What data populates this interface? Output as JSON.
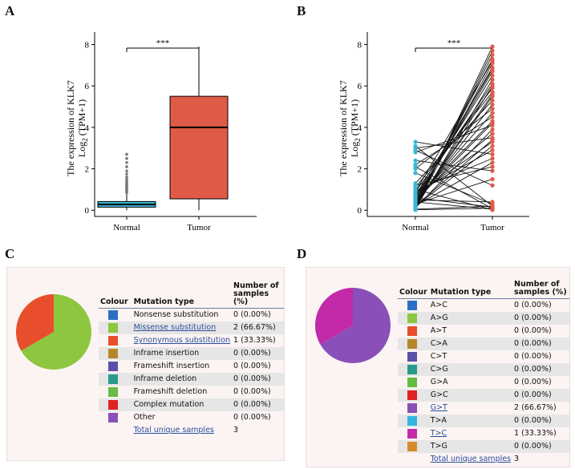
{
  "panels": {
    "A": "A",
    "B": "B",
    "C": "C",
    "D": "D"
  },
  "chart_data": [
    {
      "type": "box",
      "panel": "A",
      "ylabel_line1": "The expression  of KLK7",
      "ylabel_line2": "Log",
      "ylabel_sub": "2",
      "ylabel_tail": " (TPM+1)",
      "ylim": [
        -0.3,
        8.6
      ],
      "yticks": [
        "0",
        "2",
        "4",
        "6",
        "8"
      ],
      "categories": [
        "Normal",
        "Tumor"
      ],
      "boxes": [
        {
          "name": "Normal",
          "min": 0.0,
          "q1": 0.15,
          "median": 0.28,
          "q3": 0.42,
          "max": 0.8,
          "color": "#3bb6d6",
          "outliers": [
            0.85,
            0.9,
            0.95,
            1.0,
            1.05,
            1.1,
            1.15,
            1.2,
            1.3,
            1.4,
            1.5,
            1.6,
            1.75,
            1.9,
            2.1,
            2.3,
            2.5,
            2.7
          ]
        },
        {
          "name": "Tumor",
          "min": 0.0,
          "q1": 0.55,
          "median": 4.0,
          "q3": 5.5,
          "max": 7.9,
          "color": "#e05a48"
        }
      ],
      "significance": "***"
    },
    {
      "type": "paired-line",
      "panel": "B",
      "ylabel_line1": "The expression  of KLK7",
      "ylabel_line2": "Log",
      "ylabel_sub": "2",
      "ylabel_tail": " (TPM+1)",
      "ylim": [
        -0.3,
        8.6
      ],
      "yticks": [
        "0",
        "2",
        "4",
        "6",
        "8"
      ],
      "categories": [
        "Normal",
        "Tumor"
      ],
      "normal_color": "#3bb6d6",
      "tumor_color": "#e05a48",
      "pairs": [
        [
          0.05,
          7.9
        ],
        [
          0.1,
          7.7
        ],
        [
          0.2,
          7.5
        ],
        [
          0.3,
          7.3
        ],
        [
          0.15,
          7.1
        ],
        [
          0.4,
          6.9
        ],
        [
          0.5,
          6.7
        ],
        [
          0.6,
          6.5
        ],
        [
          0.08,
          6.3
        ],
        [
          0.7,
          6.1
        ],
        [
          0.9,
          5.9
        ],
        [
          1.1,
          5.7
        ],
        [
          0.25,
          5.5
        ],
        [
          1.3,
          5.3
        ],
        [
          0.35,
          5.1
        ],
        [
          2.0,
          4.9
        ],
        [
          0.45,
          4.7
        ],
        [
          2.2,
          4.5
        ],
        [
          0.55,
          4.3
        ],
        [
          2.8,
          4.1
        ],
        [
          0.12,
          3.9
        ],
        [
          0.65,
          3.7
        ],
        [
          3.0,
          3.5
        ],
        [
          0.75,
          3.3
        ],
        [
          0.18,
          3.1
        ],
        [
          0.85,
          2.9
        ],
        [
          3.3,
          2.7
        ],
        [
          0.95,
          2.5
        ],
        [
          0.22,
          2.3
        ],
        [
          1.2,
          2.1
        ],
        [
          2.4,
          1.9
        ],
        [
          0.3,
          1.5
        ],
        [
          2.9,
          1.2
        ],
        [
          0.5,
          0.4
        ],
        [
          1.8,
          0.3
        ],
        [
          3.1,
          0.2
        ],
        [
          0.6,
          0.15
        ],
        [
          0.02,
          0.1
        ],
        [
          2.1,
          0.08
        ],
        [
          0.4,
          0.05
        ],
        [
          1.0,
          0.02
        ],
        [
          0.05,
          0.2
        ],
        [
          0.7,
          6.8
        ],
        [
          0.3,
          5.6
        ],
        [
          0.15,
          6.0
        ],
        [
          0.45,
          4.2
        ],
        [
          0.9,
          7.2
        ],
        [
          0.2,
          3.4
        ]
      ],
      "significance": "***"
    },
    {
      "type": "pie",
      "panel": "C",
      "slices": [
        {
          "label": "Missense substitution",
          "value": 66.67,
          "color": "#8dc63f"
        },
        {
          "label": "Synonymous substitution",
          "value": 33.33,
          "color": "#e84e2c"
        }
      ]
    },
    {
      "type": "pie",
      "panel": "D",
      "slices": [
        {
          "label": "G>T",
          "value": 66.67,
          "color": "#8a4fb8"
        },
        {
          "label": "T>C",
          "value": 33.33,
          "color": "#c22aa9"
        }
      ]
    }
  ],
  "tableC": {
    "headers": {
      "colour": "Colour",
      "type": "Mutation type",
      "samples": "Number of samples (%)"
    },
    "rows": [
      {
        "color": "#2e6fc4",
        "label": "Nonsense substitution",
        "value": "0 (0.00%)",
        "link": false
      },
      {
        "color": "#8dc63f",
        "label": "Missense substitution",
        "value": "2 (66.67%)",
        "link": true
      },
      {
        "color": "#e84e2c",
        "label": "Synonymous substitution",
        "value": "1 (33.33%)",
        "link": true
      },
      {
        "color": "#b8862a",
        "label": "Inframe insertion",
        "value": "0 (0.00%)",
        "link": false
      },
      {
        "color": "#5a4fa8",
        "label": "Frameshift insertion",
        "value": "0 (0.00%)",
        "link": false
      },
      {
        "color": "#2a9a8a",
        "label": "Inframe deletion",
        "value": "0 (0.00%)",
        "link": false
      },
      {
        "color": "#66bb44",
        "label": "Frameshift deletion",
        "value": "0 (0.00%)",
        "link": false
      },
      {
        "color": "#e02222",
        "label": "Complex mutation",
        "value": "0 (0.00%)",
        "link": false
      },
      {
        "color": "#8a4fb8",
        "label": "Other",
        "value": "0 (0.00%)",
        "link": false
      }
    ],
    "total_label": "Total unique samples",
    "total_value": "3"
  },
  "tableD": {
    "headers": {
      "colour": "Colour",
      "type": "Mutation type",
      "samples": "Number of samples (%)"
    },
    "rows": [
      {
        "color": "#2e6fc4",
        "label": "A>C",
        "value": "0 (0.00%)",
        "link": false
      },
      {
        "color": "#8dc63f",
        "label": "A>G",
        "value": "0 (0.00%)",
        "link": false
      },
      {
        "color": "#e84e2c",
        "label": "A>T",
        "value": "0 (0.00%)",
        "link": false
      },
      {
        "color": "#b8862a",
        "label": "C>A",
        "value": "0 (0.00%)",
        "link": false
      },
      {
        "color": "#5a4fa8",
        "label": "C>T",
        "value": "0 (0.00%)",
        "link": false
      },
      {
        "color": "#2a9a8a",
        "label": "C>G",
        "value": "0 (0.00%)",
        "link": false
      },
      {
        "color": "#66bb44",
        "label": "G>A",
        "value": "0 (0.00%)",
        "link": false
      },
      {
        "color": "#e02222",
        "label": "G>C",
        "value": "0 (0.00%)",
        "link": false
      },
      {
        "color": "#8a4fb8",
        "label": "G>T",
        "value": "2 (66.67%)",
        "link": true
      },
      {
        "color": "#33b5e0",
        "label": "T>A",
        "value": "0 (0.00%)",
        "link": false
      },
      {
        "color": "#c22aa9",
        "label": "T>C",
        "value": "1 (33.33%)",
        "link": true
      },
      {
        "color": "#d88a2a",
        "label": "T>G",
        "value": "0 (0.00%)",
        "link": false
      }
    ],
    "total_label": "Total unique samples",
    "total_value": "3"
  }
}
